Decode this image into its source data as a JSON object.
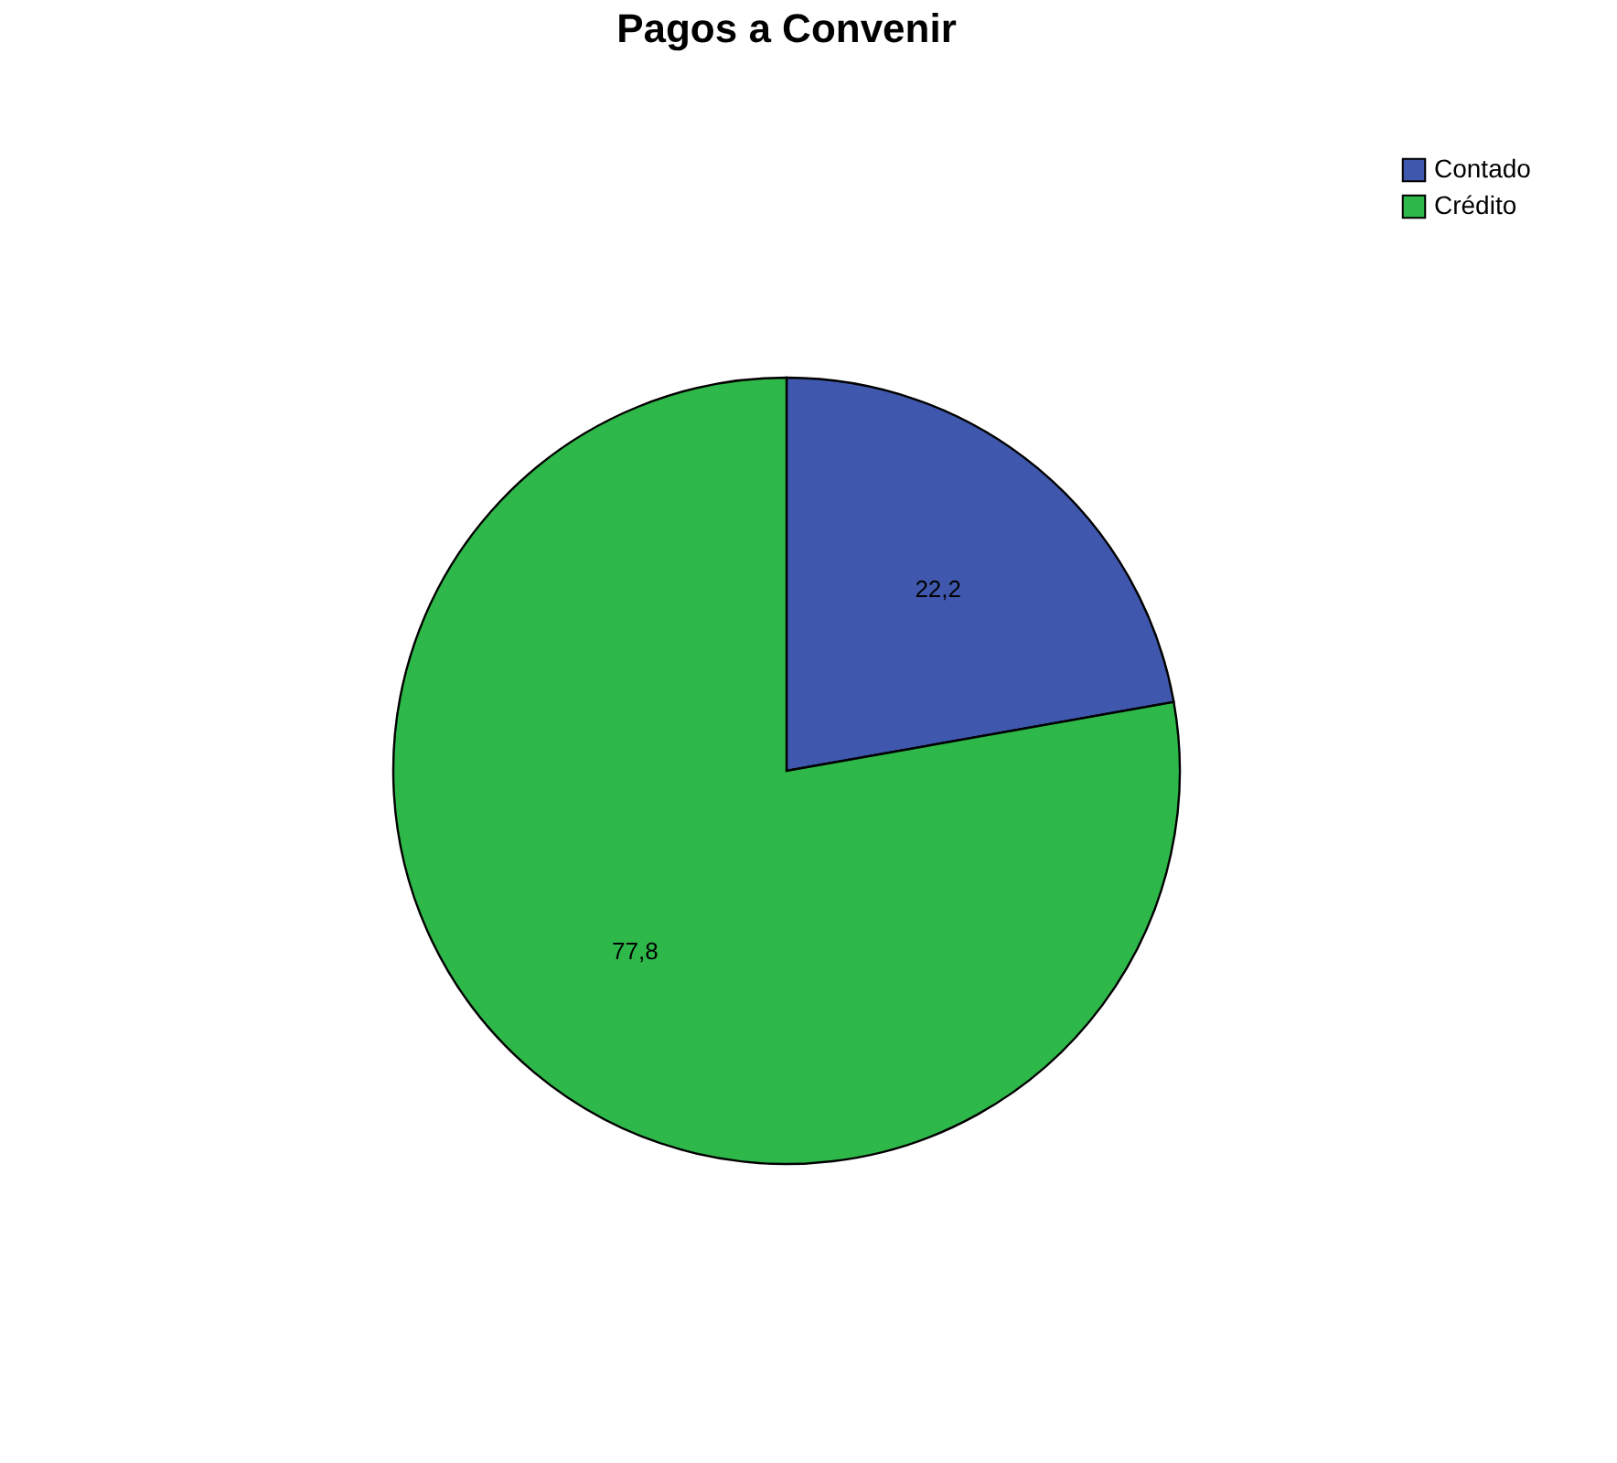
{
  "chart_data": {
    "type": "pie",
    "title": "Pagos a Convenir",
    "categories": [
      "Contado",
      "Crédito"
    ],
    "values": [
      22.2,
      77.8
    ],
    "colors": [
      "#3f58ad",
      "#2fb84a"
    ],
    "value_labels": [
      "22,2",
      "77,8"
    ],
    "legend": "top right"
  }
}
